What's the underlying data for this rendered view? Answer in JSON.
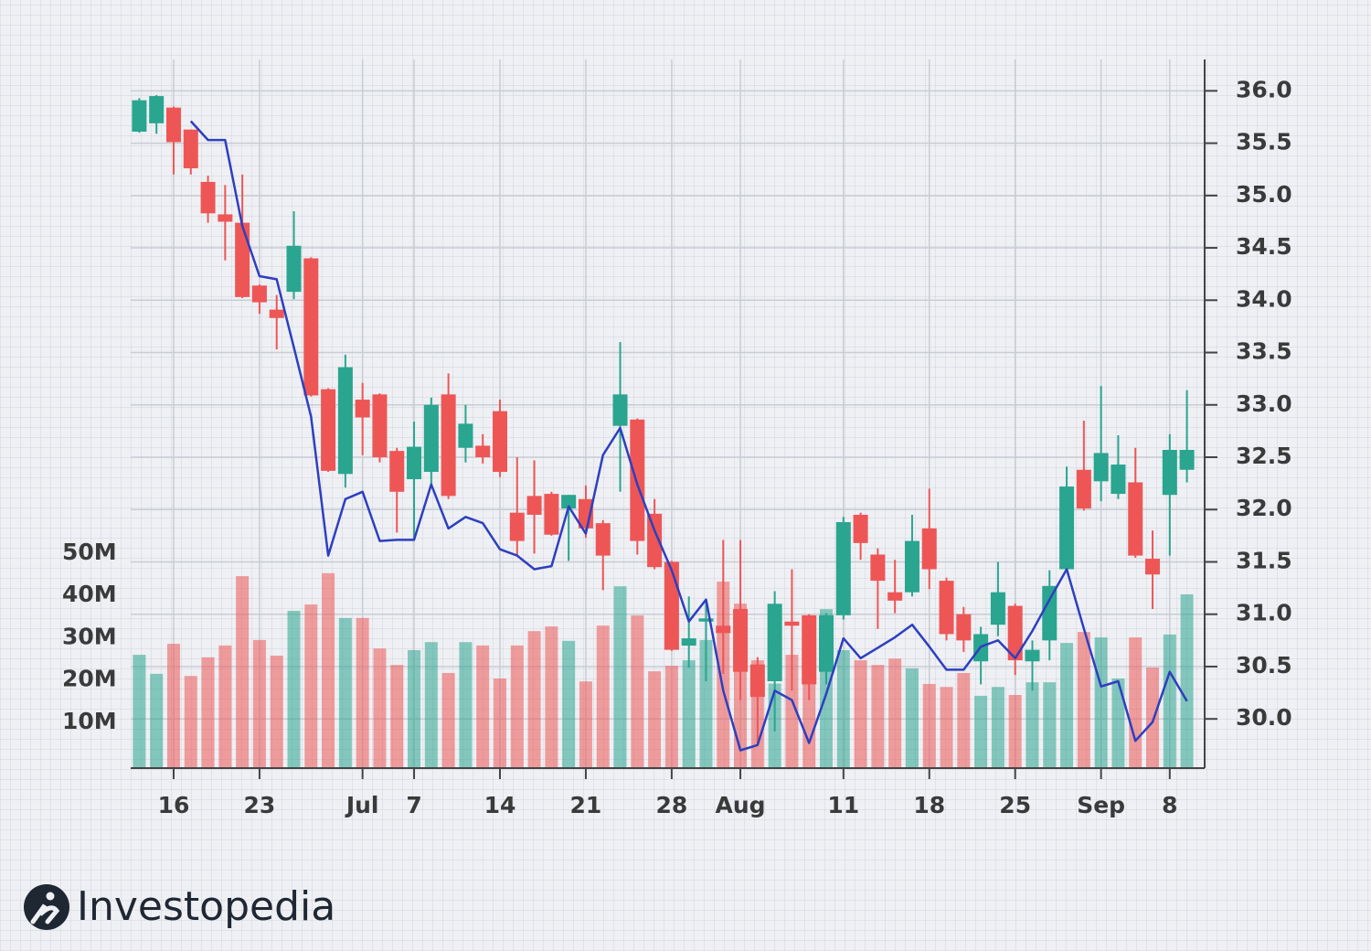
{
  "chart_data": {
    "type": "candlestick",
    "categories": [
      null,
      null,
      "16",
      null,
      null,
      null,
      null,
      "23",
      null,
      null,
      null,
      null,
      null,
      "Jul",
      null,
      null,
      "7",
      null,
      null,
      null,
      null,
      "14",
      null,
      null,
      null,
      null,
      "21",
      null,
      null,
      null,
      null,
      "28",
      null,
      null,
      null,
      "Aug",
      null,
      null,
      null,
      null,
      null,
      "11",
      null,
      null,
      null,
      null,
      "18",
      null,
      null,
      null,
      null,
      "25",
      null,
      null,
      null,
      null,
      "Sep",
      null,
      null,
      null,
      "8",
      null
    ],
    "open": [
      35.61,
      35.69,
      35.84,
      35.63,
      35.13,
      34.82,
      34.74,
      34.14,
      33.91,
      34.08,
      34.4,
      33.15,
      32.34,
      33.05,
      33.1,
      32.56,
      32.29,
      32.36,
      33.1,
      32.59,
      32.61,
      32.94,
      31.97,
      32.13,
      32.15,
      32.01,
      32.1,
      31.87,
      32.8,
      32.86,
      31.96,
      31.5,
      30.7,
      30.93,
      30.89,
      31.05,
      30.52,
      30.36,
      30.93,
      30.99,
      30.45,
      30.99,
      31.95,
      31.57,
      31.21,
      31.21,
      31.82,
      31.32,
      31.0,
      30.55,
      30.9,
      31.08,
      30.55,
      30.75,
      31.43,
      32.38,
      32.27,
      32.15,
      32.26,
      31.53,
      32.14,
      32.38
    ],
    "high": [
      35.93,
      35.96,
      35.85,
      35.63,
      35.19,
      35.1,
      35.2,
      34.15,
      34.05,
      34.85,
      34.41,
      33.16,
      33.48,
      33.21,
      33.11,
      32.59,
      32.84,
      33.07,
      33.3,
      33.0,
      32.72,
      33.05,
      32.5,
      32.47,
      32.17,
      32.14,
      32.23,
      31.9,
      33.6,
      32.87,
      32.1,
      31.51,
      31.17,
      31.14,
      31.71,
      31.71,
      30.59,
      31.22,
      31.43,
      31.0,
      31.01,
      31.93,
      31.97,
      31.63,
      31.52,
      31.95,
      32.2,
      31.35,
      31.07,
      30.88,
      31.5,
      31.1,
      30.75,
      31.42,
      32.41,
      32.85,
      33.18,
      32.71,
      32.59,
      31.8,
      32.72,
      33.14
    ],
    "low": [
      35.6,
      35.59,
      35.2,
      35.2,
      34.74,
      34.38,
      34.02,
      33.87,
      33.53,
      34.01,
      33.08,
      32.36,
      32.21,
      32.52,
      32.45,
      31.78,
      31.71,
      32.24,
      32.1,
      32.45,
      32.44,
      32.31,
      31.56,
      31.58,
      31.75,
      31.51,
      31.73,
      31.23,
      32.17,
      31.57,
      31.43,
      30.65,
      30.49,
      30.36,
      30.43,
      30.18,
      29.77,
      29.88,
      30.27,
      30.18,
      30.33,
      30.95,
      31.52,
      30.86,
      31.01,
      31.17,
      31.24,
      30.75,
      30.64,
      30.33,
      30.79,
      30.42,
      30.27,
      30.56,
      31.42,
      31.99,
      32.08,
      32.1,
      31.54,
      31.05,
      31.56,
      32.26
    ],
    "close": [
      35.91,
      35.95,
      35.51,
      35.26,
      34.83,
      34.75,
      34.03,
      33.98,
      33.83,
      34.52,
      33.09,
      32.37,
      33.36,
      32.88,
      32.5,
      32.17,
      32.6,
      33.0,
      32.13,
      32.82,
      32.5,
      32.36,
      31.7,
      31.95,
      31.76,
      32.14,
      31.82,
      31.56,
      33.1,
      31.7,
      31.45,
      30.66,
      30.77,
      30.96,
      30.82,
      30.45,
      30.21,
      31.1,
      30.89,
      30.33,
      30.99,
      31.88,
      31.68,
      31.32,
      31.13,
      31.7,
      31.43,
      30.81,
      30.75,
      30.81,
      31.21,
      30.56,
      30.66,
      31.27,
      32.22,
      32.01,
      32.54,
      32.43,
      31.56,
      31.38,
      32.57,
      32.57
    ],
    "volume": [
      26.8,
      22.3,
      29.4,
      21.8,
      26.2,
      29.0,
      45.4,
      30.3,
      26.6,
      37.2,
      38.7,
      46.1,
      35.5,
      35.5,
      28.3,
      24.4,
      27.9,
      29.8,
      22.5,
      29.8,
      29.0,
      21.2,
      29.0,
      32.4,
      33.5,
      30.1,
      20.5,
      33.7,
      43.0,
      36.1,
      22.9,
      24.2,
      25.5,
      30.3,
      44.1,
      38.9,
      25.5,
      20.0,
      26.8,
      30.3,
      37.6,
      27.9,
      25.5,
      24.4,
      25.9,
      23.6,
      19.9,
      19.2,
      22.5,
      17.1,
      19.2,
      17.3,
      20.3,
      20.3,
      29.6,
      32.2,
      30.9,
      21.2,
      30.9,
      23.8,
      31.6,
      41.1
    ],
    "line": {
      "color": "#2d3fbf",
      "values": [
        null,
        null,
        null,
        35.71,
        35.53,
        35.53,
        34.71,
        34.23,
        34.2,
        33.55,
        32.89,
        31.56,
        32.1,
        32.17,
        31.7,
        31.71,
        31.71,
        32.24,
        31.82,
        31.93,
        31.87,
        31.62,
        31.56,
        31.43,
        31.46,
        32.03,
        31.77,
        32.52,
        32.78,
        32.24,
        31.8,
        31.42,
        30.93,
        31.14,
        30.27,
        29.7,
        29.75,
        30.27,
        30.18,
        29.77,
        30.24,
        30.77,
        30.58,
        30.68,
        30.78,
        30.9,
        30.69,
        30.47,
        30.47,
        30.69,
        30.75,
        30.58,
        30.84,
        31.14,
        31.43,
        30.86,
        30.31,
        30.36,
        29.79,
        29.97,
        30.45,
        30.17
      ]
    },
    "up_color": "#2aa58f",
    "down_color": "#ee5656",
    "ylim": [
      29.53,
      36.3
    ],
    "yticks": [
      {
        "value": 30,
        "label": "30.0"
      },
      {
        "value": 30.5,
        "label": "30.5"
      },
      {
        "value": 31,
        "label": "31.0"
      },
      {
        "value": 31.5,
        "label": "31.5"
      },
      {
        "value": 32,
        "label": "32.0"
      },
      {
        "value": 32.5,
        "label": "32.5"
      },
      {
        "value": 33,
        "label": "33.0"
      },
      {
        "value": 33.5,
        "label": "33.5"
      },
      {
        "value": 34,
        "label": "34.0"
      },
      {
        "value": 34.5,
        "label": "34.5"
      },
      {
        "value": 35,
        "label": "35.0"
      },
      {
        "value": 35.5,
        "label": "35.5"
      },
      {
        "value": 36,
        "label": "36.0"
      }
    ],
    "y2lim": [
      0,
      167.6
    ],
    "y2ticks": [
      {
        "value": 10,
        "label": "10M"
      },
      {
        "value": 20,
        "label": "20M"
      },
      {
        "value": 30,
        "label": "30M"
      },
      {
        "value": 40,
        "label": "40M"
      },
      {
        "value": 50,
        "label": "50M"
      }
    ],
    "grid": true
  },
  "brand": "Investopedia"
}
